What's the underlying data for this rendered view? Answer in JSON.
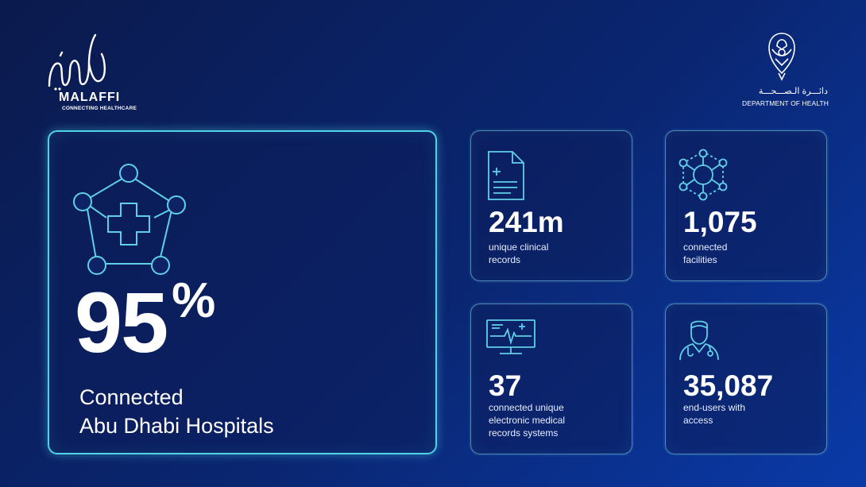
{
  "brand": {
    "logo_word": "MALAFFI",
    "logo_tagline": "CONNECTING HEALTHCARE",
    "department_ar": "دائـــرة الـصـــحـــة",
    "department_en": "DEPARTMENT OF HEALTH"
  },
  "headline_stat": {
    "value": "95",
    "unit": "%",
    "label_line1": "Connected",
    "label_line2": "Abu Dhabi Hospitals",
    "icon": "hospital-network-icon"
  },
  "stats": [
    {
      "value": "241m",
      "label_line1": "unique clinical",
      "label_line2": "records",
      "label_line3": "",
      "icon": "clinical-record-icon"
    },
    {
      "value": "1,075",
      "label_line1": "connected",
      "label_line2": "facilities",
      "label_line3": "",
      "icon": "network-nodes-icon"
    },
    {
      "value": "37",
      "label_line1": "connected unique",
      "label_line2": "electronic medical",
      "label_line3": "records systems",
      "icon": "monitor-ecg-icon"
    },
    {
      "value": "35,087",
      "label_line1": "end-users with",
      "label_line2": "access",
      "label_line3": "",
      "icon": "doctor-icon"
    }
  ],
  "colors": {
    "accent": "#4fd3e6",
    "icon_stroke": "#5fd0e8",
    "background_dark": "#0b1a4d",
    "background_light": "#0a3aa8"
  }
}
